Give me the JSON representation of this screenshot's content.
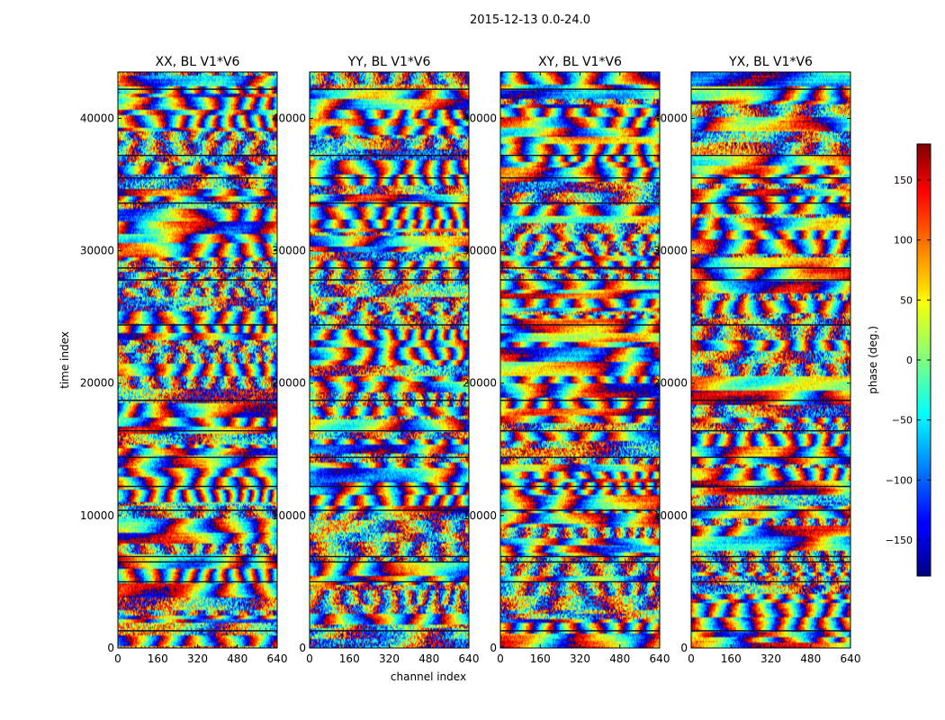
{
  "figure": {
    "suptitle": "2015-12-13 0.0-24.0"
  },
  "chart_data": {
    "type": "heatmap",
    "xlabel": "channel index",
    "ylabel": "time index",
    "xlim": [
      0,
      640
    ],
    "ylim": [
      0,
      43500
    ],
    "xticks": [
      0,
      160,
      320,
      480,
      640
    ],
    "yticks": [
      0,
      10000,
      20000,
      30000,
      40000
    ],
    "xtick_labels": [
      "0",
      "160",
      "320",
      "480",
      "640"
    ],
    "ytick_labels": [
      "0",
      "10000",
      "20000",
      "30000",
      "40000"
    ],
    "panels": [
      {
        "title": "XX, BL V1*V6",
        "seed": 11
      },
      {
        "title": "YY, BL V1*V6",
        "seed": 23
      },
      {
        "title": "XY, BL V1*V6",
        "seed": 37
      },
      {
        "title": "YX, BL V1*V6",
        "seed": 53
      }
    ],
    "gap_rows_time_index": [
      1300,
      5000,
      6500,
      6900,
      10400,
      12200,
      14400,
      16400,
      18700,
      24400,
      27800,
      28700,
      33600,
      35500,
      37200,
      42200
    ],
    "colorbar": {
      "label": "phase (deg.)",
      "range": [
        -180,
        180
      ],
      "ticks": [
        150,
        100,
        50,
        0,
        -50,
        -100,
        -150
      ],
      "tick_labels": [
        "150",
        "100",
        "50",
        "0",
        "−50",
        "−100",
        "−150"
      ],
      "colormap": "jet"
    }
  }
}
